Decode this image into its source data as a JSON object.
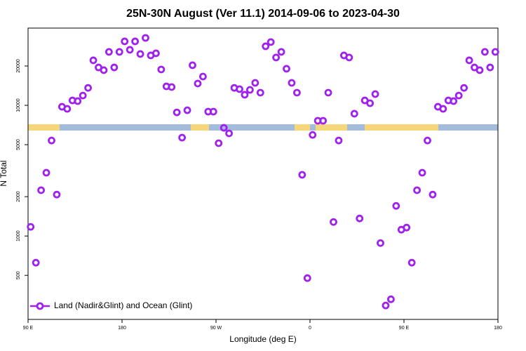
{
  "chart_data": {
    "type": "scatter",
    "title": "25N-30N August (Ver 11.1)   2014-09-06 to 2023-04-30",
    "xlabel": "Longitude (deg E)",
    "ylabel": "N Total",
    "x": [
      92.5,
      97.5,
      102.5,
      107.5,
      112.5,
      117.5,
      122.5,
      127.5,
      132.5,
      137.5,
      142.5,
      147.5,
      152.5,
      157.5,
      162.5,
      167.5,
      172.5,
      177.5,
      182.5,
      187.5,
      192.5,
      197.5,
      202.5,
      207.5,
      212.5,
      217.5,
      222.5,
      227.5,
      232.5,
      237.5,
      242.5,
      247.5,
      252.5,
      257.5,
      262.5,
      267.5,
      272.5,
      277.5,
      282.5,
      287.5,
      292.5,
      297.5,
      302.5,
      307.5,
      312.5,
      317.5,
      322.5,
      327.5,
      332.5,
      337.5,
      342.5,
      347.5,
      352.5,
      357.5,
      362.5,
      367.5,
      372.5,
      377.5,
      382.5,
      387.5,
      392.5,
      397.5,
      402.5,
      407.5,
      412.5,
      417.5,
      422.5,
      427.5,
      432.5,
      437.5,
      442.5,
      447.5,
      452.5,
      457.5,
      462.5,
      467.5,
      472.5,
      477.5,
      482.5,
      487.5,
      492.5,
      497.5,
      502.5,
      507.5,
      512.5,
      517.5,
      522.5,
      527.5,
      532.5,
      537.5
    ],
    "series": [
      {
        "name": "Land (Nadir&Glint) and Ocean (Glint)",
        "color": "#a020f0",
        "values": [
          1175,
          625,
          2240,
          3050,
          5380,
          2075,
          9750,
          9400,
          10900,
          10770,
          11880,
          13600,
          22100,
          19500,
          18580,
          25640,
          19500,
          25640,
          30850,
          26600,
          30850,
          24700,
          32800,
          24100,
          25000,
          18800,
          13960,
          13800,
          8830,
          5660,
          9170,
          20270,
          14680,
          16610,
          8950,
          8950,
          5130,
          6730,
          6100,
          13600,
          13300,
          12050,
          13130,
          14860,
          12500,
          28300,
          30500,
          23230,
          25640,
          19050,
          14860,
          12500,
          2940,
          476,
          5940,
          7620,
          7620,
          12500,
          1280,
          5380,
          24100,
          23230,
          8630,
          1362,
          10900,
          10380,
          12190,
          883,
          294,
          328,
          1700,
          1118,
          1160,
          625,
          2240,
          3050,
          5380,
          2075,
          9750,
          9400,
          10900,
          10770,
          11880,
          13600,
          22100,
          19500,
          18580,
          25640,
          19500,
          25640
        ]
      }
    ],
    "xlim": [
      90,
      540
    ],
    "xticks": [
      {
        "value": 90,
        "label": "90 E"
      },
      180,
      {
        "value": 270,
        "label": "90 W"
      },
      {
        "value": 360,
        "label": "0"
      },
      {
        "value": 450,
        "label": "90 E"
      },
      {
        "value": 540,
        "label": "180"
      }
    ],
    "ylim": [
      230,
      39000
    ],
    "yticks": [
      500,
      1000,
      2000,
      5000,
      10000,
      20000
    ],
    "y_log": true,
    "legend": "lower left"
  }
}
